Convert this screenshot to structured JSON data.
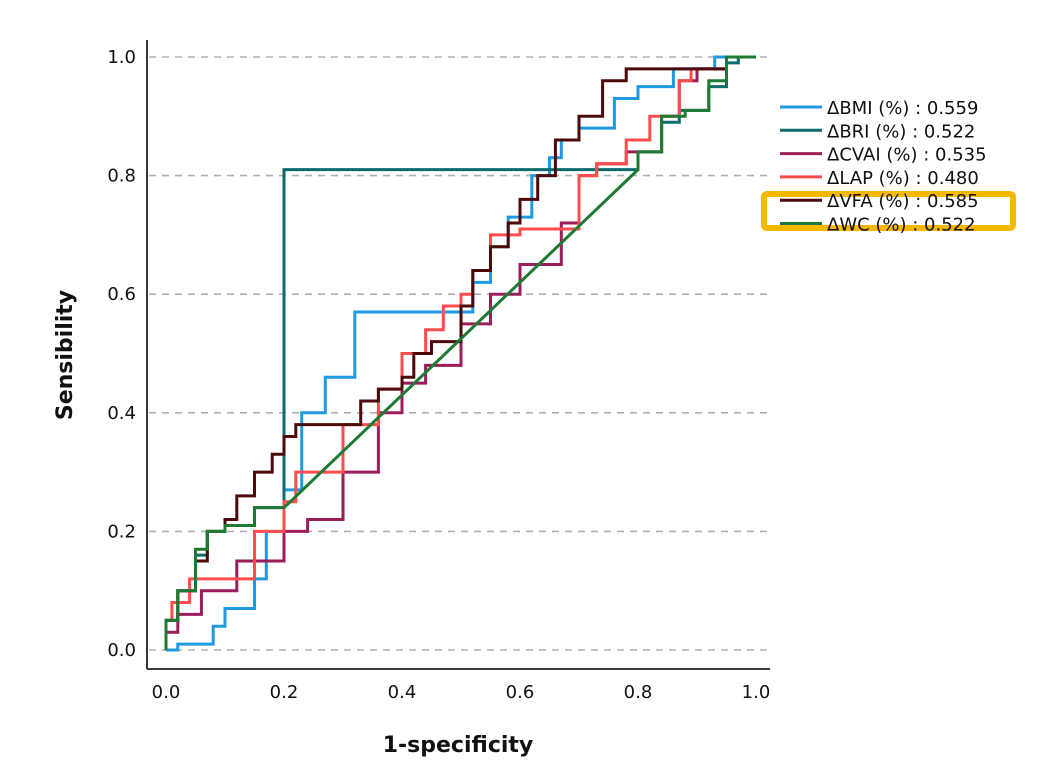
{
  "chart_data": {
    "type": "line",
    "title": "",
    "xlabel": "1-specificity",
    "ylabel": "Sensibility",
    "xlim": [
      0,
      1
    ],
    "ylim": [
      0,
      1
    ],
    "xticks": [
      "0.0",
      "0.2",
      "0.4",
      "0.6",
      "0.8",
      "1.0"
    ],
    "yticks": [
      "0.0",
      "0.2",
      "0.4",
      "0.6",
      "0.8",
      "1.0"
    ],
    "grid": "horizontal-dashed",
    "legend_position": "right",
    "highlighted_series": "ΔVFA (%)",
    "highlight_color": "#f5b800",
    "series": [
      {
        "name": "ΔBMI (%)",
        "auc": "0.559",
        "color": "#1f9ae0",
        "step": true,
        "x": [
          0,
          0.02,
          0.03,
          0.08,
          0.1,
          0.15,
          0.17,
          0.2,
          0.23,
          0.27,
          0.3,
          0.32,
          0.52,
          0.55,
          0.58,
          0.62,
          0.65,
          0.67,
          0.7,
          0.76,
          0.8,
          0.86,
          0.93,
          1.0
        ],
        "y": [
          0,
          0,
          0.01,
          0.01,
          0.04,
          0.07,
          0.12,
          0.2,
          0.27,
          0.4,
          0.46,
          0.46,
          0.57,
          0.62,
          0.68,
          0.73,
          0.8,
          0.83,
          0.86,
          0.88,
          0.93,
          0.95,
          0.98,
          1.0
        ]
      },
      {
        "name": "ΔBRI (%)",
        "auc": "0.522",
        "color": "#0e6b6b",
        "step": true,
        "x": [
          0,
          0,
          0.02,
          0.05,
          0.07,
          0.1,
          0.15,
          0.2,
          0.8,
          0.84,
          0.87,
          0.92,
          0.95,
          0.97,
          1.0
        ],
        "y": [
          0,
          0.02,
          0.05,
          0.1,
          0.16,
          0.2,
          0.21,
          0.24,
          0.81,
          0.84,
          0.89,
          0.91,
          0.95,
          0.99,
          1.0
        ]
      },
      {
        "name": "ΔCVAI (%)",
        "auc": "0.535",
        "color": "#9b1e5a",
        "step": true,
        "x": [
          0,
          0.02,
          0.06,
          0.12,
          0.2,
          0.24,
          0.3,
          0.36,
          0.4,
          0.44,
          0.5,
          0.55,
          0.6,
          0.67,
          0.7,
          0.73,
          0.78,
          0.84,
          0.87,
          0.9,
          0.95,
          1.0
        ],
        "y": [
          0,
          0.03,
          0.06,
          0.1,
          0.15,
          0.2,
          0.22,
          0.3,
          0.4,
          0.45,
          0.48,
          0.55,
          0.6,
          0.65,
          0.72,
          0.8,
          0.82,
          0.84,
          0.9,
          0.96,
          0.98,
          1.0
        ]
      },
      {
        "name": "ΔLAP (%)",
        "auc": "0.480",
        "color": "#ff4d4d",
        "step": true,
        "x": [
          0,
          0.01,
          0.04,
          0.08,
          0.15,
          0.2,
          0.22,
          0.3,
          0.36,
          0.4,
          0.44,
          0.47,
          0.5,
          0.52,
          0.55,
          0.6,
          0.7,
          0.73,
          0.78,
          0.82,
          0.87,
          0.89,
          0.95,
          1.0
        ],
        "y": [
          0,
          0.05,
          0.08,
          0.12,
          0.12,
          0.2,
          0.25,
          0.3,
          0.38,
          0.44,
          0.5,
          0.54,
          0.58,
          0.6,
          0.64,
          0.7,
          0.71,
          0.8,
          0.82,
          0.86,
          0.9,
          0.96,
          0.98,
          1.0
        ]
      },
      {
        "name": "ΔVFA (%)",
        "auc": "0.585",
        "color": "#4d0a0a",
        "step": true,
        "x": [
          0,
          0.02,
          0.05,
          0.07,
          0.1,
          0.12,
          0.15,
          0.18,
          0.2,
          0.22,
          0.25,
          0.33,
          0.36,
          0.4,
          0.42,
          0.45,
          0.5,
          0.52,
          0.55,
          0.58,
          0.6,
          0.63,
          0.66,
          0.7,
          0.74,
          0.78,
          0.86,
          0.95,
          0.98,
          1.0
        ],
        "y": [
          0,
          0.05,
          0.1,
          0.15,
          0.2,
          0.22,
          0.26,
          0.3,
          0.33,
          0.36,
          0.38,
          0.38,
          0.42,
          0.44,
          0.46,
          0.5,
          0.52,
          0.58,
          0.64,
          0.68,
          0.72,
          0.76,
          0.8,
          0.86,
          0.9,
          0.96,
          0.98,
          0.98,
          1.0,
          1.0
        ]
      },
      {
        "name": "ΔWC (%)",
        "auc": "0.522",
        "color": "#1e7b34",
        "step": true,
        "x": [
          0,
          0,
          0.02,
          0.05,
          0.07,
          0.1,
          0.15,
          0.2,
          0.8,
          0.84,
          0.88,
          0.92,
          0.95,
          0.97,
          1.0
        ],
        "y": [
          0,
          0.02,
          0.05,
          0.1,
          0.17,
          0.2,
          0.21,
          0.24,
          0.81,
          0.84,
          0.9,
          0.91,
          0.96,
          1.0,
          1.0
        ],
        "linear_segment": [
          7,
          8
        ]
      }
    ]
  }
}
